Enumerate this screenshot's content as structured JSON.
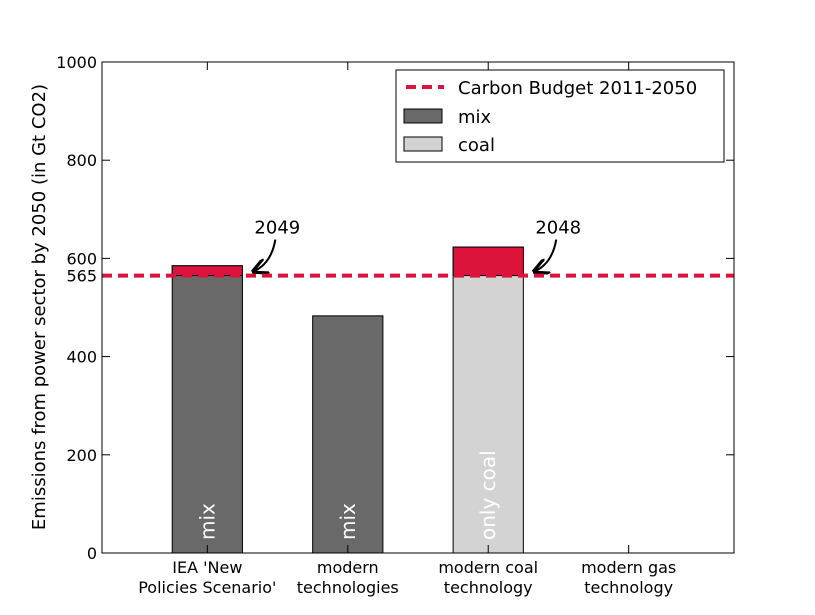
{
  "chart_data": {
    "type": "bar",
    "ylabel": "Emissions from power sector by 2050 (in Gt CO2)",
    "categories": [
      [
        "IEA 'New",
        "Policies Scenario'"
      ],
      [
        "modern",
        "technologies"
      ],
      [
        "modern coal",
        "technology"
      ],
      [
        "modern gas",
        "technology"
      ]
    ],
    "series": [
      {
        "name": "mix",
        "color": "#696969",
        "values": [
          585,
          483,
          null,
          null
        ]
      },
      {
        "name": "coal",
        "color": "#d3d3d3",
        "values": [
          null,
          null,
          623,
          null
        ]
      }
    ],
    "bar_labels": [
      "mix",
      "mix",
      "only coal",
      null
    ],
    "annotations": [
      "2049",
      null,
      "2048",
      null
    ],
    "budget": {
      "name": "Carbon Budget 2011-2050",
      "value": 565,
      "color": "#dc143c"
    },
    "ylim": [
      0,
      1000
    ],
    "yticks": [
      0,
      200,
      400,
      565,
      600,
      800,
      1000
    ],
    "legend": "upper right"
  }
}
